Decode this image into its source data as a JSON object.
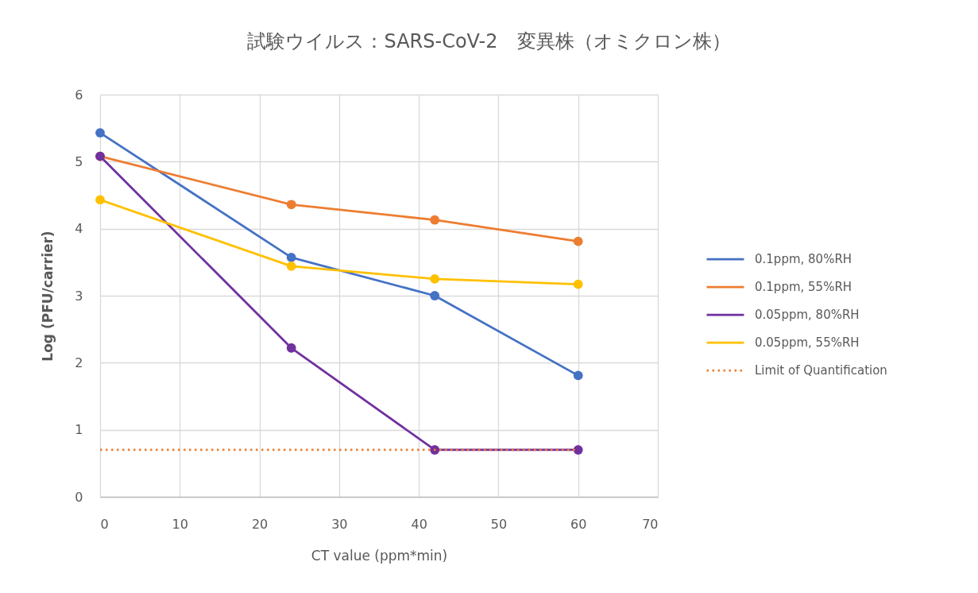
{
  "chart_data": {
    "type": "line",
    "title": "試験ウイルス：SARS-CoV-2　変異株（オミクロン株）",
    "xlabel": "CT value (ppm*min)",
    "ylabel": "Log (PFU/carrier)",
    "x": [
      0,
      24,
      42,
      60
    ],
    "series": [
      {
        "name": "0.1ppm, 80%RH",
        "color": "#4472c4",
        "values": [
          5.43,
          3.57,
          3.0,
          1.81
        ]
      },
      {
        "name": "0.1ppm, 55%RH",
        "color": "#ed7d31",
        "values": [
          5.08,
          4.36,
          4.13,
          3.81
        ]
      },
      {
        "name": "0.05ppm, 80%RH",
        "color": "#7030a0",
        "values": [
          5.08,
          2.22,
          0.7,
          0.7
        ]
      },
      {
        "name": "0.05ppm, 55%RH",
        "color": "#ffc000",
        "values": [
          4.43,
          3.44,
          3.25,
          3.17
        ]
      },
      {
        "name": "Limit of Quantification",
        "color": "#ed7d31",
        "x": [
          0,
          60
        ],
        "values": [
          0.7,
          0.7
        ],
        "marker": "none",
        "line_style": "dotted"
      }
    ],
    "xlim": [
      0,
      70
    ],
    "xticks": [
      0,
      10,
      20,
      30,
      40,
      50,
      60,
      70
    ],
    "ylim": [
      0,
      6
    ],
    "yticks": [
      0,
      1,
      2,
      3,
      4,
      5,
      6
    ],
    "grid": true,
    "legend": "right",
    "marker": "circle",
    "line_style": "solid"
  }
}
